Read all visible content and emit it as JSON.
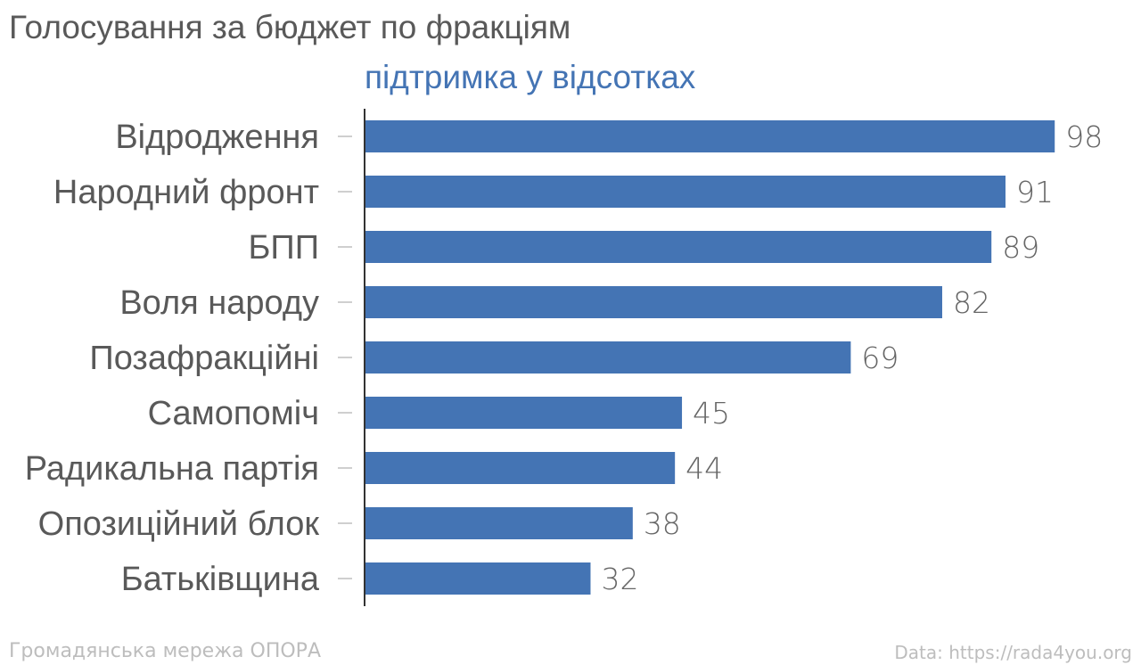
{
  "chart_data": {
    "type": "bar",
    "orientation": "horizontal",
    "title": "Голосування за бюджет по фракціям",
    "subtitle": "підтримка у відсотках",
    "categories": [
      "Відродження",
      "Народний фронт",
      "БПП",
      "Воля народу",
      "Позафракційні",
      "Самопоміч",
      "Радикальна партія",
      "Опозиційний блок",
      "Батьківщина"
    ],
    "values": [
      98,
      91,
      89,
      82,
      69,
      45,
      44,
      38,
      32
    ],
    "xlim": [
      0,
      100
    ],
    "grid": false,
    "bar_color": "#4474b4",
    "data_labels": true
  },
  "footer": {
    "source_left": "Громадянська мережа ОПОРА",
    "source_right": "Data: https://rada4you.org"
  }
}
